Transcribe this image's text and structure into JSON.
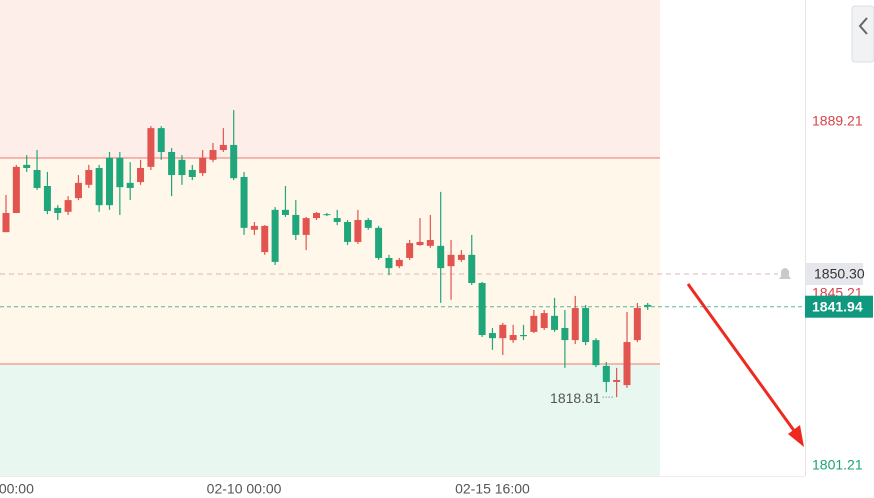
{
  "chart_data": {
    "type": "candlestick",
    "categories": [
      null,
      "00:00",
      null,
      null,
      null,
      null,
      null,
      null,
      null,
      null,
      null,
      null,
      null,
      null,
      null,
      null,
      null,
      null,
      null,
      null,
      null,
      null,
      null,
      "02-10 00:00",
      null,
      null,
      null,
      null,
      null,
      null,
      null,
      null,
      null,
      null,
      null,
      null,
      null,
      null,
      null,
      null,
      null,
      null,
      null,
      null,
      null,
      null,
      null,
      "02-15 16:00",
      null,
      null,
      null,
      null,
      null,
      null,
      null,
      null,
      null,
      null,
      null,
      null,
      null,
      null,
      null
    ],
    "open": [
      1861.0,
      1865.9,
      1878.2,
      1876.9,
      1872.8,
      1867.2,
      1866.2,
      1869.7,
      1873.1,
      1877.4,
      1880.0,
      1880.0,
      1873.6,
      1873.8,
      1877.7,
      1887.6,
      1881.5,
      1879.5,
      1876.9,
      1876.1,
      1879.5,
      1882.0,
      1883.3,
      1875.1,
      1861.6,
      1855.9,
      1866.7,
      1866.7,
      1865.4,
      1860.3,
      1864.6,
      1865.6,
      1864.6,
      1863.6,
      1858.5,
      1864.1,
      1862.1,
      1854.4,
      1852.3,
      1854.4,
      1857.7,
      1857.5,
      1857.5,
      1852.3,
      1853.9,
      1855.2,
      1848.0,
      1835.2,
      1833.9,
      1833.4,
      1834.7,
      1835.5,
      1836.5,
      1839.6,
      1836.5,
      1833.4,
      1841.6,
      1833.4,
      1826.8,
      1822.7,
      1821.9,
      1833.4,
      1842.4
    ],
    "high": [
      1870.5,
      1878.2,
      1880.7,
      1882.0,
      1876.4,
      1867.9,
      1870.2,
      1875.6,
      1878.2,
      1878.2,
      1881.5,
      1881.5,
      1878.9,
      1879.5,
      1888.1,
      1888.1,
      1882.5,
      1880.7,
      1878.2,
      1882.0,
      1883.8,
      1887.6,
      1892.2,
      1876.4,
      1863.6,
      1862.8,
      1867.4,
      1872.8,
      1869.2,
      1864.9,
      1866.2,
      1865.9,
      1866.7,
      1864.1,
      1866.7,
      1864.6,
      1862.6,
      1855.2,
      1854.4,
      1859.0,
      1864.6,
      1865.4,
      1871.3,
      1859.0,
      1856.4,
      1860.3,
      1848.3,
      1836.5,
      1837.8,
      1837.3,
      1837.3,
      1841.1,
      1841.1,
      1844.2,
      1841.1,
      1844.7,
      1842.4,
      1833.9,
      1827.8,
      1826.3,
      1840.6,
      1842.9,
      1842.9
    ],
    "low": [
      1861.0,
      1865.9,
      1876.4,
      1871.8,
      1865.6,
      1864.1,
      1865.4,
      1869.2,
      1872.3,
      1866.2,
      1866.7,
      1865.4,
      1869.2,
      1873.1,
      1876.9,
      1879.5,
      1870.2,
      1873.1,
      1874.3,
      1875.4,
      1878.9,
      1881.5,
      1874.3,
      1860.3,
      1860.3,
      1855.2,
      1852.6,
      1864.9,
      1859.0,
      1856.4,
      1864.1,
      1865.1,
      1862.8,
      1857.7,
      1858.0,
      1861.6,
      1853.9,
      1850.0,
      1851.8,
      1853.9,
      1857.5,
      1857.0,
      1842.9,
      1843.7,
      1853.4,
      1847.5,
      1834.2,
      1830.9,
      1829.6,
      1832.7,
      1833.4,
      1835.2,
      1836.0,
      1835.5,
      1826.3,
      1832.4,
      1832.1,
      1826.5,
      1820.1,
      1818.81,
      1821.2,
      1832.9,
      1841.1
    ],
    "close": [
      1865.9,
      1877.7,
      1877.4,
      1872.3,
      1866.4,
      1865.9,
      1869.2,
      1873.6,
      1876.9,
      1867.9,
      1867.9,
      1872.5,
      1872.3,
      1877.4,
      1887.6,
      1881.5,
      1875.6,
      1875.6,
      1875.1,
      1880.0,
      1882.0,
      1883.3,
      1874.8,
      1862.1,
      1862.6,
      1862.6,
      1853.4,
      1865.4,
      1860.3,
      1864.6,
      1865.9,
      1865.4,
      1863.6,
      1858.5,
      1864.1,
      1862.1,
      1854.4,
      1851.8,
      1853.9,
      1858.2,
      1858.5,
      1859.0,
      1851.8,
      1855.2,
      1855.2,
      1848.0,
      1834.7,
      1833.9,
      1837.3,
      1834.7,
      1834.4,
      1839.6,
      1840.3,
      1836.0,
      1833.4,
      1841.6,
      1832.9,
      1827.0,
      1822.7,
      1823.2,
      1832.9,
      1841.6,
      1841.94
    ],
    "up_color": "#e2544f",
    "down_color": "#1fa67a",
    "ylim": [
      1798.65,
      1920.36
    ],
    "zone_lines": [
      1879.96,
      1827.29
    ],
    "zone_colors": [
      "#fdeeea",
      "#fff8ea",
      "#e8f7ef"
    ],
    "zone_line_color": "#f2a19a",
    "price_levels": [
      1889.21,
      1845.21,
      1801.21
    ],
    "price_level_colors": [
      "#d9434b",
      "#d9434b",
      "#1aa37a"
    ],
    "alert_line": {
      "value": 1850.3,
      "label": "1850.30"
    },
    "current_price": 1841.94,
    "current_color": "#11997f",
    "low_marker": {
      "index": 59,
      "value": 1818.81
    }
  }
}
